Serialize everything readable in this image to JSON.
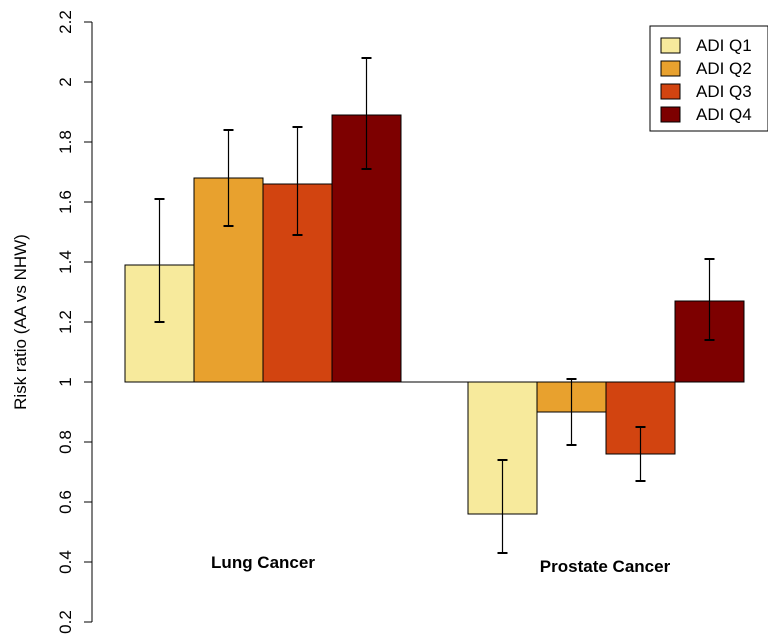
{
  "chart_data": {
    "type": "bar",
    "title": "",
    "xlabel": "",
    "ylabel": "Risk ratio (AA vs NHW)",
    "ylim": [
      0.2,
      2.2
    ],
    "baseline": 1,
    "y_ticks": [
      "0.2",
      "0.4",
      "0.6",
      "0.8",
      "1",
      "1.2",
      "1.4",
      "1.6",
      "1.8",
      "2",
      "2.2"
    ],
    "categories": [
      "Lung Cancer",
      "Prostate Cancer"
    ],
    "series": [
      {
        "name": "ADI Q1",
        "color": "#F7EA9C",
        "values": [
          1.39,
          0.56
        ],
        "ci_low": [
          1.2,
          0.43
        ],
        "ci_high": [
          1.61,
          0.74
        ]
      },
      {
        "name": "ADI Q2",
        "color": "#E8A12E",
        "values": [
          1.68,
          0.9
        ],
        "ci_low": [
          1.52,
          0.79
        ],
        "ci_high": [
          1.84,
          1.01
        ]
      },
      {
        "name": "ADI Q3",
        "color": "#D24410",
        "values": [
          1.66,
          0.76
        ],
        "ci_low": [
          1.49,
          0.67
        ],
        "ci_high": [
          1.85,
          0.85
        ]
      },
      {
        "name": "ADI Q4",
        "color": "#7D0000",
        "values": [
          1.89,
          1.27
        ],
        "ci_low": [
          1.71,
          1.14
        ],
        "ci_high": [
          2.08,
          1.41
        ]
      }
    ],
    "legend_position": "top-right",
    "grid": false
  }
}
